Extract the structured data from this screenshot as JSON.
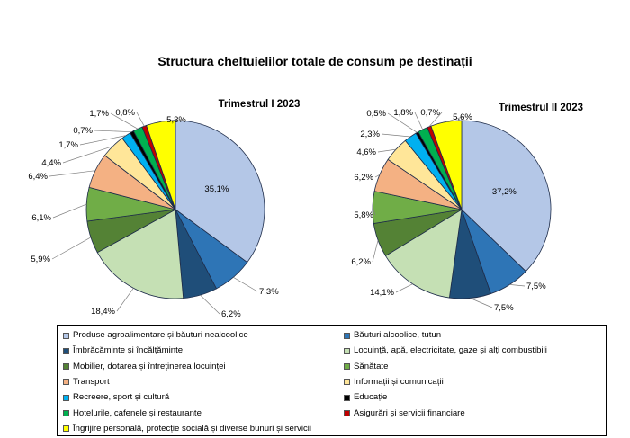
{
  "title": "Structura cheltuielilor totale de consum pe destinații",
  "categories": [
    "Produse agroalimentare și băuturi nealcoolice",
    "Băuturi alcoolice, tutun",
    "Îmbrăcăminte și încălțăminte",
    "Locuință, apă, electricitate, gaze și alți combustibili",
    "Mobilier, dotarea și întreținerea locuinței",
    "Sănătate",
    "Transport",
    "Informații și comunicații",
    "Recreere, sport și cultură",
    "Educație",
    "Hotelurile, cafenele și restaurante",
    "Asigurări și servicii financiare",
    "Îngrijire personală, protecție socială și diverse bunuri și servicii"
  ],
  "colors": [
    "#b4c7e7",
    "#2e75b6",
    "#1f4e79",
    "#c5e0b4",
    "#548235",
    "#70ad47",
    "#f4b183",
    "#ffe699",
    "#00b0f0",
    "#000000",
    "#00b050",
    "#c00000",
    "#ffff00"
  ],
  "chart_data": [
    {
      "type": "pie",
      "title": "Trimestrul  I 2023",
      "values": [
        35.1,
        7.3,
        6.2,
        18.4,
        5.9,
        6.1,
        6.4,
        4.4,
        1.7,
        0.7,
        1.7,
        0.8,
        5.3
      ],
      "labels": [
        "35,1%",
        "7,3%",
        "6,2%",
        "18,4%",
        "5,9%",
        "6,1%",
        "6,4%",
        "4,4%",
        "1,7%",
        "0,7%",
        "1,7%",
        "0,8%",
        "5,3%"
      ]
    },
    {
      "type": "pie",
      "title": "Trimestrul  II 2023",
      "values": [
        37.2,
        7.5,
        7.5,
        14.1,
        6.2,
        5.8,
        6.2,
        4.6,
        2.3,
        0.5,
        1.8,
        0.7,
        5.6
      ],
      "labels": [
        "37,2%",
        "7,5%",
        "7,5%",
        "14,1%",
        "6,2%",
        "5,8%",
        "6,2%",
        "4,6%",
        "2,3%",
        "0,5%",
        "1,8%",
        "0,7%",
        "5,6%"
      ]
    }
  ]
}
